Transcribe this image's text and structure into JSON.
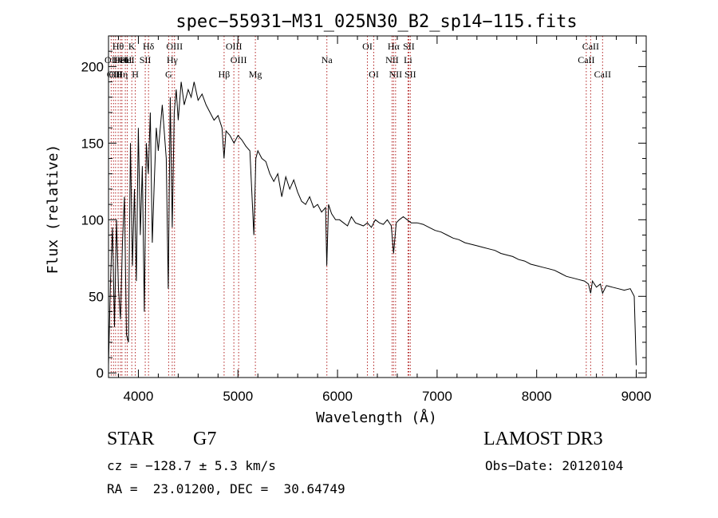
{
  "chart_data": {
    "type": "line",
    "title": "spec−55931−M31_025N30_B2_sp14−115.fits",
    "xlabel": "Wavelength (Å)",
    "ylabel": "Flux (relative)",
    "xlim": [
      3700,
      9100
    ],
    "ylim": [
      -3,
      220
    ],
    "x_ticks": [
      4000,
      5000,
      6000,
      7000,
      8000,
      9000
    ],
    "x_tick_labels": [
      "4000",
      "5000",
      "6000",
      "7000",
      "8000",
      "9000"
    ],
    "y_ticks": [
      0,
      50,
      100,
      150,
      200
    ],
    "y_tick_labels": [
      "0",
      "50",
      "100",
      "150",
      "200"
    ],
    "line_color": "#000000",
    "marker_color": "#b22222",
    "series": [
      {
        "name": "flux",
        "x": [
          3700,
          3720,
          3740,
          3760,
          3780,
          3800,
          3820,
          3840,
          3860,
          3880,
          3900,
          3920,
          3940,
          3960,
          3980,
          4000,
          4020,
          4040,
          4060,
          4080,
          4100,
          4120,
          4140,
          4160,
          4180,
          4200,
          4240,
          4280,
          4300,
          4320,
          4340,
          4360,
          4380,
          4400,
          4430,
          4460,
          4500,
          4530,
          4560,
          4600,
          4640,
          4680,
          4720,
          4760,
          4800,
          4840,
          4860,
          4880,
          4920,
          4960,
          5000,
          5040,
          5080,
          5120,
          5160,
          5180,
          5200,
          5240,
          5280,
          5320,
          5360,
          5400,
          5440,
          5480,
          5520,
          5560,
          5600,
          5640,
          5680,
          5720,
          5760,
          5800,
          5840,
          5880,
          5892,
          5910,
          5940,
          5980,
          6020,
          6060,
          6100,
          6140,
          6180,
          6220,
          6260,
          6300,
          6340,
          6380,
          6420,
          6460,
          6500,
          6540,
          6563,
          6590,
          6620,
          6660,
          6700,
          6740,
          6800,
          6860,
          6920,
          6980,
          7040,
          7100,
          7160,
          7220,
          7280,
          7340,
          7400,
          7460,
          7520,
          7580,
          7640,
          7700,
          7760,
          7820,
          7880,
          7940,
          8000,
          8060,
          8120,
          8180,
          8240,
          8300,
          8360,
          8420,
          8480,
          8520,
          8542,
          8560,
          8600,
          8640,
          8662,
          8700,
          8760,
          8820,
          8880,
          8940,
          8980,
          9000
        ],
        "values": [
          5,
          60,
          95,
          30,
          100,
          55,
          35,
          85,
          115,
          25,
          20,
          150,
          70,
          120,
          60,
          160,
          90,
          135,
          40,
          150,
          130,
          170,
          85,
          125,
          160,
          145,
          175,
          140,
          55,
          180,
          95,
          170,
          185,
          165,
          190,
          175,
          185,
          180,
          190,
          178,
          182,
          175,
          170,
          165,
          168,
          160,
          140,
          158,
          155,
          150,
          155,
          152,
          148,
          145,
          90,
          140,
          145,
          140,
          138,
          130,
          125,
          130,
          115,
          128,
          120,
          126,
          118,
          112,
          110,
          115,
          108,
          110,
          105,
          108,
          70,
          110,
          104,
          100,
          100,
          98,
          96,
          102,
          98,
          97,
          96,
          98,
          95,
          100,
          98,
          97,
          100,
          96,
          78,
          98,
          100,
          102,
          100,
          98,
          98,
          97,
          95,
          93,
          92,
          90,
          88,
          87,
          85,
          84,
          83,
          82,
          81,
          80,
          78,
          77,
          76,
          74,
          73,
          71,
          70,
          69,
          68,
          67,
          65,
          63,
          62,
          61,
          60,
          58,
          52,
          60,
          56,
          58,
          52,
          57,
          56,
          55,
          54,
          55,
          50,
          5
        ]
      }
    ],
    "lines": [
      {
        "wl": 3727,
        "label": "OII",
        "row": 2
      },
      {
        "wl": 3750,
        "label": "OII",
        "row": 3
      },
      {
        "wl": 3771,
        "label": "OII",
        "row": 3
      },
      {
        "wl": 3797,
        "label": "Hθ",
        "row": 1
      },
      {
        "wl": 3820,
        "label": "HeI",
        "row": 2
      },
      {
        "wl": 3835,
        "label": "Hη",
        "row": 3
      },
      {
        "wl": 3869,
        "label": "OII",
        "row": 2
      },
      {
        "wl": 3889,
        "label": "HeI",
        "row": 2
      },
      {
        "wl": 3934,
        "label": "K",
        "row": 1
      },
      {
        "wl": 3969,
        "label": "H",
        "row": 3
      },
      {
        "wl": 4069,
        "label": "SII",
        "row": 2
      },
      {
        "wl": 4102,
        "label": "Hδ",
        "row": 1
      },
      {
        "wl": 4304,
        "label": "G",
        "row": 3
      },
      {
        "wl": 4340,
        "label": "Hγ",
        "row": 2
      },
      {
        "wl": 4363,
        "label": "OIII",
        "row": 1
      },
      {
        "wl": 4861,
        "label": "Hβ",
        "row": 3
      },
      {
        "wl": 4959,
        "label": "OIII",
        "row": 1
      },
      {
        "wl": 5007,
        "label": "OIII",
        "row": 2
      },
      {
        "wl": 5175,
        "label": "Mg",
        "row": 3
      },
      {
        "wl": 5893,
        "label": "Na",
        "row": 2
      },
      {
        "wl": 6300,
        "label": "OI",
        "row": 1
      },
      {
        "wl": 6364,
        "label": "OI",
        "row": 3
      },
      {
        "wl": 6548,
        "label": "NII",
        "row": 2
      },
      {
        "wl": 6563,
        "label": "Hα",
        "row": 1
      },
      {
        "wl": 6583,
        "label": "NII",
        "row": 3
      },
      {
        "wl": 6708,
        "label": "Li",
        "row": 2
      },
      {
        "wl": 6716,
        "label": "SII",
        "row": 1
      },
      {
        "wl": 6731,
        "label": "SII",
        "row": 3
      },
      {
        "wl": 8498,
        "label": "CaII",
        "row": 2
      },
      {
        "wl": 8542,
        "label": "CaII",
        "row": 1
      },
      {
        "wl": 8662,
        "label": "CaII",
        "row": 3
      }
    ]
  },
  "info": {
    "class": "STAR",
    "subclass": "G7",
    "survey": "LAMOST DR3",
    "cz": "cz = −128.7 ± 5.3 km/s",
    "obs_date": "Obs−Date: 20120104",
    "ra_dec": "RA =  23.01200, DEC =  30.64749"
  }
}
